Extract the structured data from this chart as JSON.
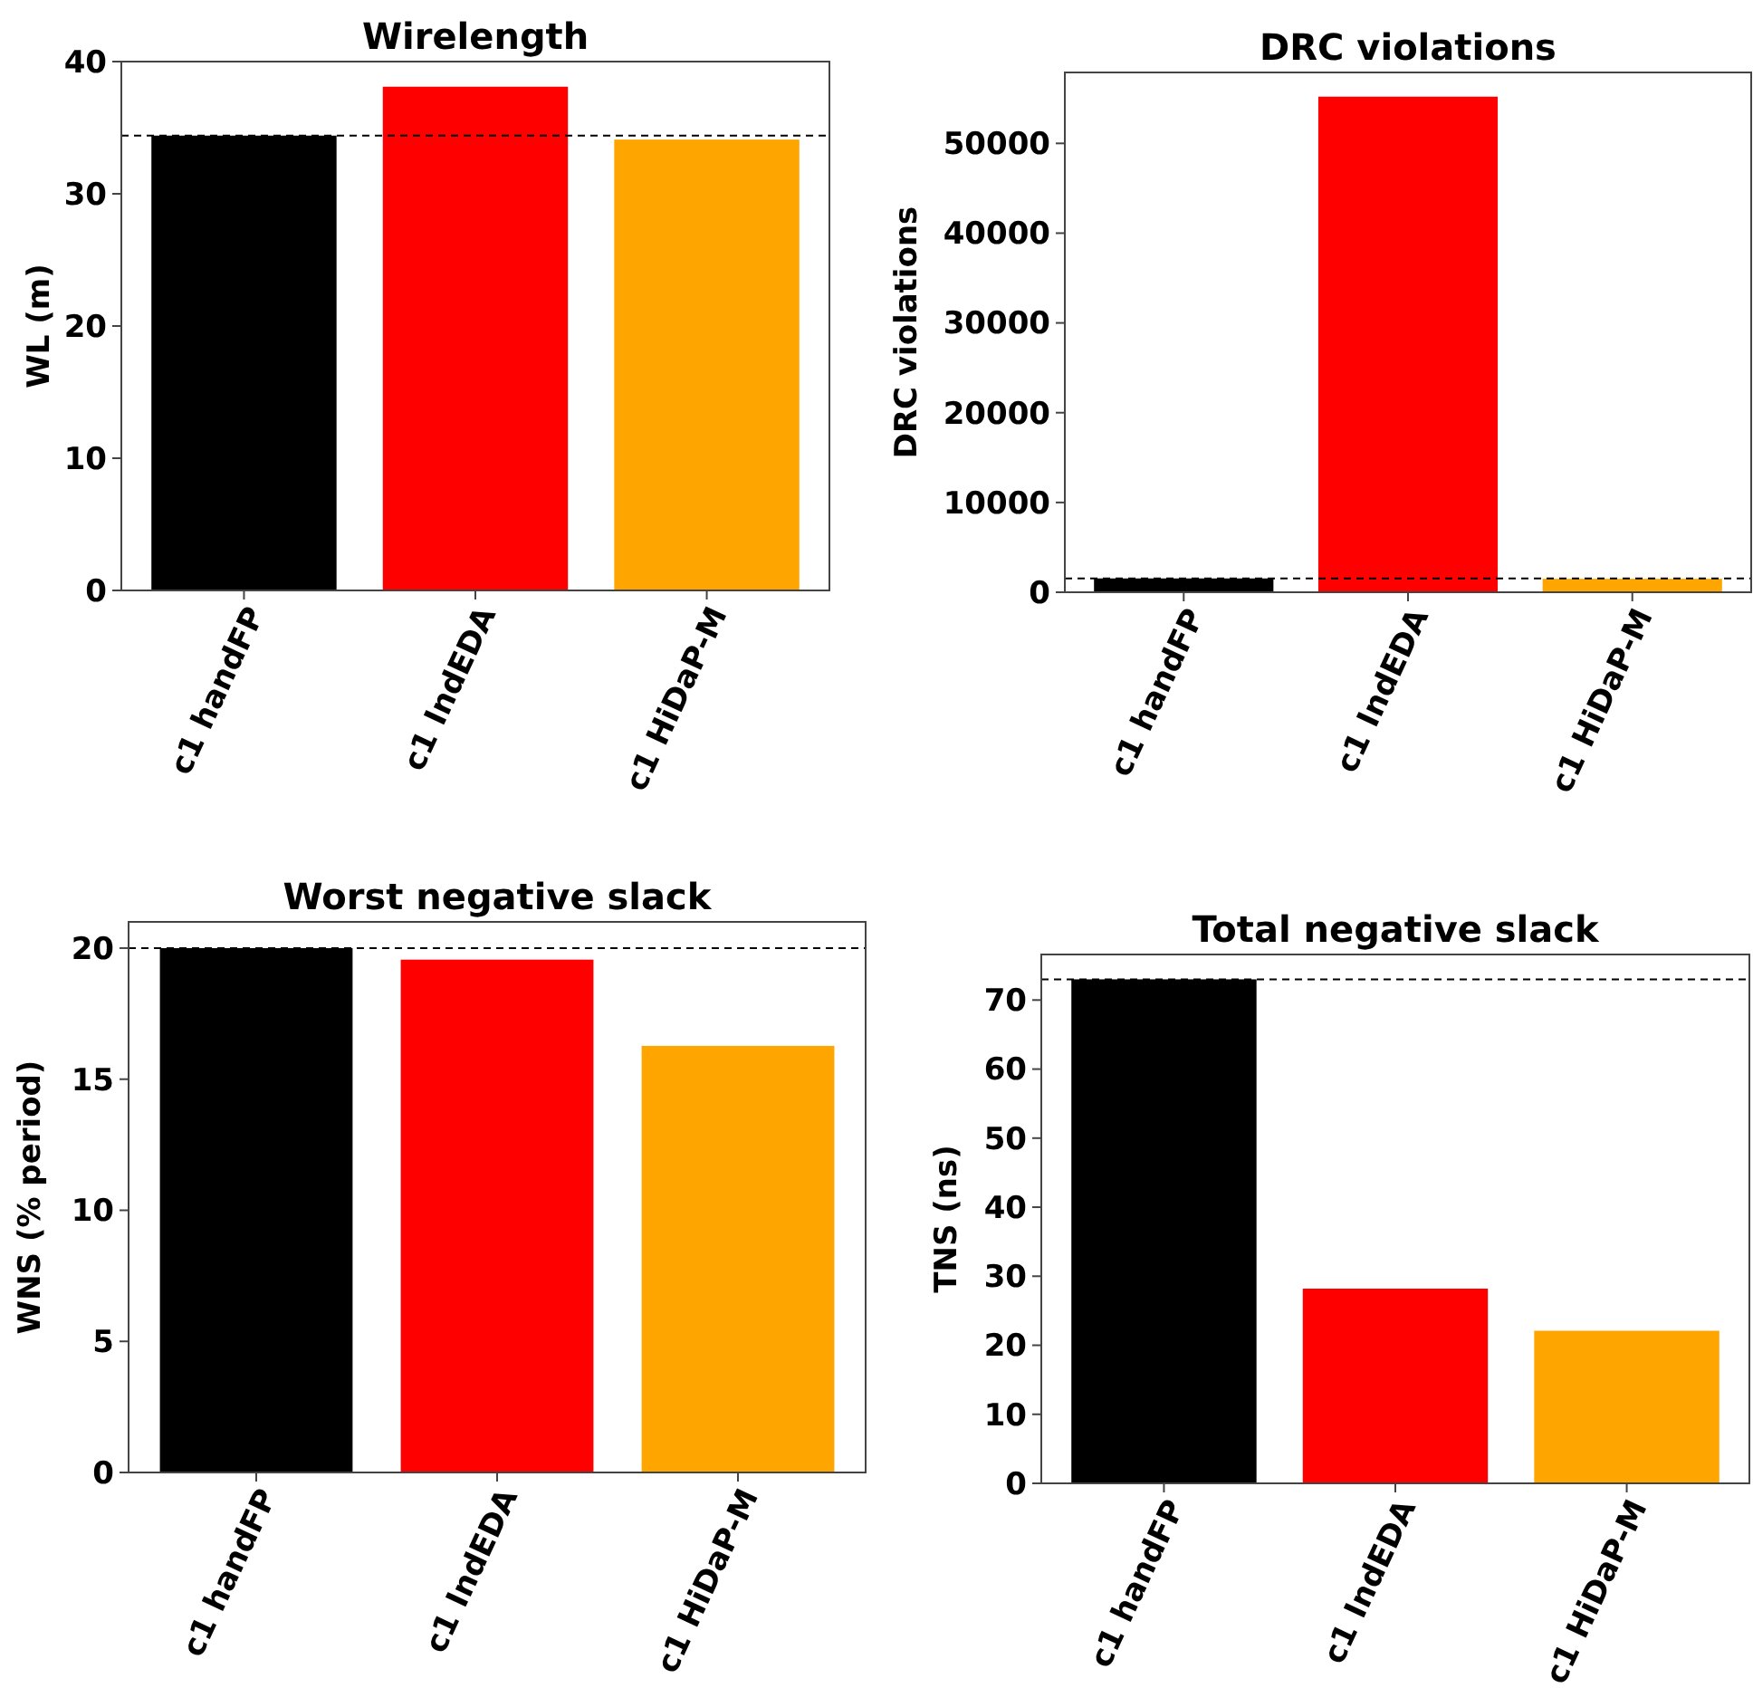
{
  "chart_data": [
    {
      "type": "bar",
      "title": "Wirelength",
      "ylabel": "WL (m)",
      "categories": [
        "c1 handFP",
        "c1 IndEDA",
        "c1 HiDaP-M"
      ],
      "values": [
        34.4,
        38.1,
        34.1
      ],
      "colors": [
        "#000000",
        "#ff0000",
        "#ffa500"
      ],
      "ylim": [
        0,
        40
      ],
      "yticks": [
        0,
        10,
        20,
        30,
        40
      ],
      "ref_lines": [
        {
          "axis": "y",
          "value": 34.4,
          "color": "#000000",
          "line_style": "dashed"
        }
      ]
    },
    {
      "type": "bar",
      "title": "DRC violations",
      "ylabel": "DRC violations",
      "categories": [
        "c1 handFP",
        "c1 IndEDA",
        "c1 HiDaP-M"
      ],
      "values": [
        1540,
        55200,
        1500
      ],
      "colors": [
        "#000000",
        "#ff0000",
        "#ffa500"
      ],
      "ylim": [
        0,
        57900
      ],
      "yticks": [
        0,
        10000,
        20000,
        30000,
        40000,
        50000
      ],
      "ref_lines": [
        {
          "axis": "y",
          "value": 1540,
          "color": "#000000",
          "line_style": "dashed"
        }
      ]
    },
    {
      "type": "bar",
      "title": "Worst negative slack",
      "ylabel": "WNS (% period)",
      "categories": [
        "c1 handFP",
        "c1 IndEDA",
        "c1 HiDaP-M"
      ],
      "values": [
        20,
        19.56,
        16.27
      ],
      "colors": [
        "#000000",
        "#ff0000",
        "#ffa500"
      ],
      "ylim": [
        0,
        21
      ],
      "yticks": [
        0,
        5,
        10,
        15,
        20
      ],
      "ref_lines": [
        {
          "axis": "y",
          "value": 20,
          "color": "#000000",
          "line_style": "dashed"
        }
      ]
    },
    {
      "type": "bar",
      "title": "Total negative slack",
      "ylabel": "TNS (ns)",
      "categories": [
        "c1 handFP",
        "c1 IndEDA",
        "c1 HiDaP-M"
      ],
      "values": [
        73,
        28.2,
        22.1
      ],
      "colors": [
        "#000000",
        "#ff0000",
        "#ffa500"
      ],
      "ylim": [
        0,
        76.6
      ],
      "yticks": [
        0,
        10,
        20,
        30,
        40,
        50,
        60,
        70
      ],
      "ref_lines": [
        {
          "axis": "y",
          "value": 73,
          "color": "#000000",
          "line_style": "dashed"
        }
      ]
    }
  ]
}
